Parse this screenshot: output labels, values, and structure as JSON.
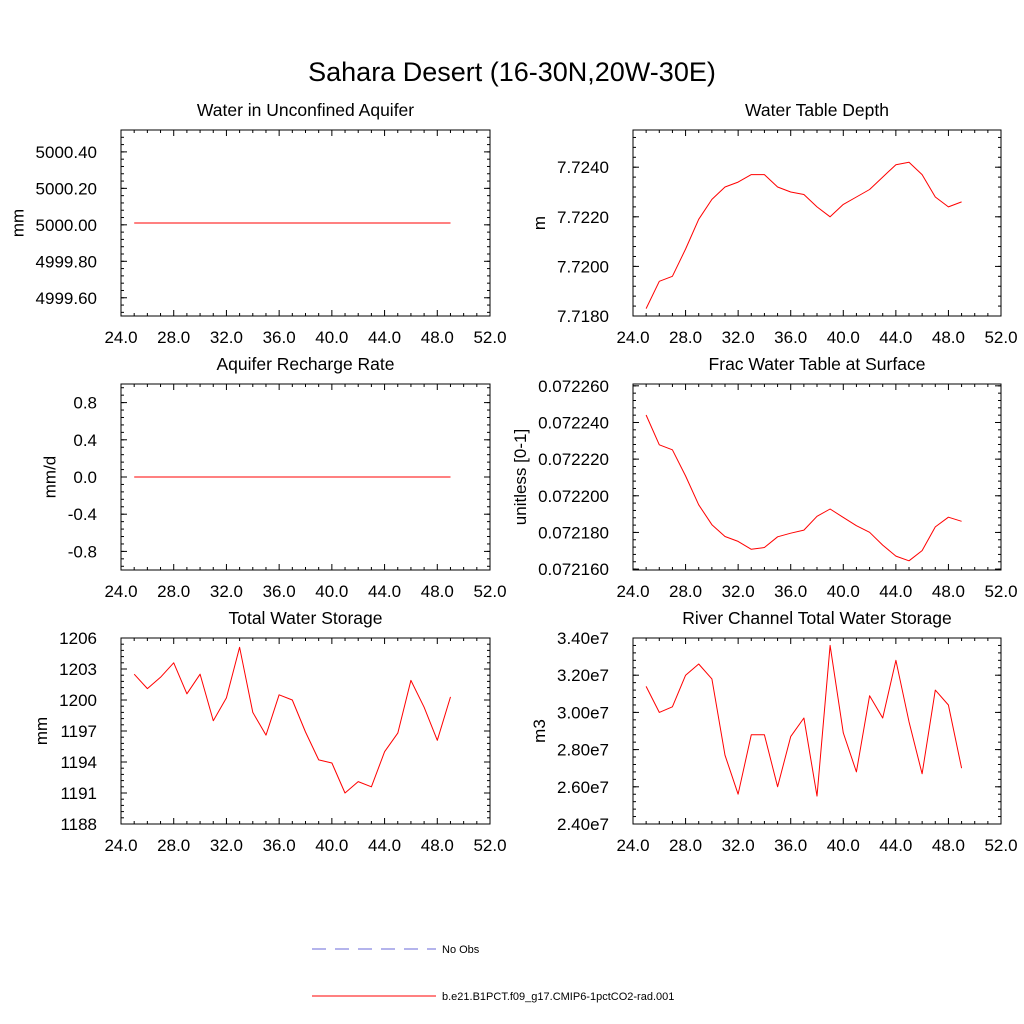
{
  "figure_title": "Sahara Desert (16-30N,20W-30E)",
  "legend": [
    {
      "label": "No Obs",
      "style": "dashed",
      "color": "#6a6ad8"
    },
    {
      "label": "b.e21.B1PCT.f09_g17.CMIP6-1pctCO2-rad.001",
      "style": "solid",
      "color": "#ff0000"
    }
  ],
  "chart_data": [
    {
      "type": "line",
      "title": "Water in Unconfined Aquifer",
      "ylabel": "mm",
      "xlim": [
        24,
        52
      ],
      "xticks": [
        "24.0",
        "28.0",
        "32.0",
        "36.0",
        "40.0",
        "44.0",
        "48.0",
        "52.0"
      ],
      "ylim": [
        4999.5,
        5000.52
      ],
      "yticks": [
        {
          "v": 4999.6,
          "label": "4999.60"
        },
        {
          "v": 4999.8,
          "label": "4999.80"
        },
        {
          "v": 5000.0,
          "label": "5000.00"
        },
        {
          "v": 5000.2,
          "label": "5000.20"
        },
        {
          "v": 5000.4,
          "label": "5000.40"
        }
      ],
      "x": [
        25,
        26,
        27,
        28,
        29,
        30,
        31,
        32,
        33,
        34,
        35,
        36,
        37,
        38,
        39,
        40,
        41,
        42,
        43,
        44,
        45,
        46,
        47,
        48,
        49
      ],
      "series": [
        {
          "name": "b.e21.B1PCT.f09_g17.CMIP6-1pctCO2-rad.001",
          "color": "#ff0000",
          "values": [
            5000.01,
            5000.01,
            5000.01,
            5000.01,
            5000.01,
            5000.01,
            5000.01,
            5000.01,
            5000.01,
            5000.01,
            5000.01,
            5000.01,
            5000.01,
            5000.01,
            5000.01,
            5000.01,
            5000.01,
            5000.01,
            5000.01,
            5000.01,
            5000.01,
            5000.01,
            5000.01,
            5000.01,
            5000.01
          ]
        }
      ]
    },
    {
      "type": "line",
      "title": "Water Table Depth",
      "ylabel": "m",
      "xlim": [
        24,
        52
      ],
      "xticks": [
        "24.0",
        "28.0",
        "32.0",
        "36.0",
        "40.0",
        "44.0",
        "48.0",
        "52.0"
      ],
      "ylim": [
        7.718,
        7.7255
      ],
      "yticks": [
        {
          "v": 7.718,
          "label": "7.7180"
        },
        {
          "v": 7.72,
          "label": "7.7200"
        },
        {
          "v": 7.722,
          "label": "7.7220"
        },
        {
          "v": 7.724,
          "label": "7.7240"
        }
      ],
      "x": [
        25,
        26,
        27,
        28,
        29,
        30,
        31,
        32,
        33,
        34,
        35,
        36,
        37,
        38,
        39,
        40,
        41,
        42,
        43,
        44,
        45,
        46,
        47,
        48,
        49
      ],
      "series": [
        {
          "name": "b.e21.B1PCT.f09_g17.CMIP6-1pctCO2-rad.001",
          "color": "#ff0000",
          "values": [
            7.7183,
            7.7194,
            7.7196,
            7.7207,
            7.7219,
            7.7227,
            7.7232,
            7.7234,
            7.7237,
            7.7237,
            7.7232,
            7.723,
            7.7229,
            7.7224,
            7.722,
            7.7225,
            7.7228,
            7.7231,
            7.7236,
            7.7241,
            7.7242,
            7.7237,
            7.7228,
            7.7224,
            7.7226
          ]
        }
      ]
    },
    {
      "type": "line",
      "title": "Aquifer Recharge Rate",
      "ylabel": "mm/d",
      "xlim": [
        24,
        52
      ],
      "xticks": [
        "24.0",
        "28.0",
        "32.0",
        "36.0",
        "40.0",
        "44.0",
        "48.0",
        "52.0"
      ],
      "ylim": [
        -1.0,
        1.0
      ],
      "yticks": [
        {
          "v": -0.8,
          "label": "-0.8"
        },
        {
          "v": -0.4,
          "label": "-0.4"
        },
        {
          "v": 0.0,
          "label": "0.0"
        },
        {
          "v": 0.4,
          "label": "0.4"
        },
        {
          "v": 0.8,
          "label": "0.8"
        }
      ],
      "x": [
        25,
        26,
        27,
        28,
        29,
        30,
        31,
        32,
        33,
        34,
        35,
        36,
        37,
        38,
        39,
        40,
        41,
        42,
        43,
        44,
        45,
        46,
        47,
        48,
        49
      ],
      "series": [
        {
          "name": "b.e21.B1PCT.f09_g17.CMIP6-1pctCO2-rad.001",
          "color": "#ff0000",
          "values": [
            0,
            0,
            0,
            0,
            0,
            0,
            0,
            0,
            0,
            0,
            0,
            0,
            0,
            0,
            0,
            0,
            0,
            0,
            0,
            0,
            0,
            0,
            0,
            0,
            0
          ]
        }
      ]
    },
    {
      "type": "line",
      "title": "Frac Water Table at Surface",
      "ylabel": "unitless [0-1]",
      "xlim": [
        24,
        52
      ],
      "xticks": [
        "24.0",
        "28.0",
        "32.0",
        "36.0",
        "40.0",
        "44.0",
        "48.0",
        "52.0"
      ],
      "ylim": [
        0.0721595,
        0.072261
      ],
      "yticks": [
        {
          "v": 0.07216,
          "label": "0.072160"
        },
        {
          "v": 0.07218,
          "label": "0.072180"
        },
        {
          "v": 0.0722,
          "label": "0.072200"
        },
        {
          "v": 0.07222,
          "label": "0.072220"
        },
        {
          "v": 0.07224,
          "label": "0.072240"
        },
        {
          "v": 0.07226,
          "label": "0.072260"
        }
      ],
      "x": [
        25,
        26,
        27,
        28,
        29,
        30,
        31,
        32,
        33,
        34,
        35,
        36,
        37,
        38,
        39,
        40,
        41,
        42,
        43,
        44,
        45,
        46,
        47,
        48,
        49
      ],
      "series": [
        {
          "name": "b.e21.B1PCT.f09_g17.CMIP6-1pctCO2-rad.001",
          "color": "#ff0000",
          "values": [
            0.0722441,
            0.0722278,
            0.0722251,
            0.0722108,
            0.0721951,
            0.0721842,
            0.0721778,
            0.0721751,
            0.0721708,
            0.0721718,
            0.0721776,
            0.0721796,
            0.0721813,
            0.0721888,
            0.0721928,
            0.0721882,
            0.0721837,
            0.0721801,
            0.0721731,
            0.0721671,
            0.0721645,
            0.0721701,
            0.072183,
            0.0721883,
            0.0721861
          ]
        }
      ]
    },
    {
      "type": "line",
      "title": "Total Water Storage",
      "ylabel": "mm",
      "xlim": [
        24,
        52
      ],
      "xticks": [
        "24.0",
        "28.0",
        "32.0",
        "36.0",
        "40.0",
        "44.0",
        "48.0",
        "52.0"
      ],
      "ylim": [
        1188,
        1206
      ],
      "yticks": [
        {
          "v": 1188,
          "label": "1188"
        },
        {
          "v": 1191,
          "label": "1191"
        },
        {
          "v": 1194,
          "label": "1194"
        },
        {
          "v": 1197,
          "label": "1197"
        },
        {
          "v": 1200,
          "label": "1200"
        },
        {
          "v": 1203,
          "label": "1203"
        },
        {
          "v": 1206,
          "label": "1206"
        }
      ],
      "x": [
        25,
        26,
        27,
        28,
        29,
        30,
        31,
        32,
        33,
        34,
        35,
        36,
        37,
        38,
        39,
        40,
        41,
        42,
        43,
        44,
        45,
        46,
        47,
        48,
        49
      ],
      "series": [
        {
          "name": "b.e21.B1PCT.f09_g17.CMIP6-1pctCO2-rad.001",
          "color": "#ff0000",
          "values": [
            1202.5,
            1201.1,
            1202.2,
            1203.6,
            1200.6,
            1202.5,
            1198,
            1200.2,
            1205.1,
            1198.8,
            1196.6,
            1200.5,
            1200,
            1196.9,
            1194.2,
            1193.9,
            1191,
            1192.1,
            1191.6,
            1195,
            1196.8,
            1201.9,
            1199.3,
            1196.1,
            1200.3
          ]
        }
      ]
    },
    {
      "type": "line",
      "title": "River Channel Total Water Storage",
      "ylabel": "m3",
      "xlim": [
        24,
        52
      ],
      "xticks": [
        "24.0",
        "28.0",
        "32.0",
        "36.0",
        "40.0",
        "44.0",
        "48.0",
        "52.0"
      ],
      "ylim": [
        24000000,
        34000000
      ],
      "yticks": [
        {
          "v": 24000000,
          "label": "2.40e7"
        },
        {
          "v": 26000000,
          "label": "2.60e7"
        },
        {
          "v": 28000000,
          "label": "2.80e7"
        },
        {
          "v": 30000000,
          "label": "3.00e7"
        },
        {
          "v": 32000000,
          "label": "3.20e7"
        },
        {
          "v": 34000000,
          "label": "3.40e7"
        }
      ],
      "x": [
        25,
        26,
        27,
        28,
        29,
        30,
        31,
        32,
        33,
        34,
        35,
        36,
        37,
        38,
        39,
        40,
        41,
        42,
        43,
        44,
        45,
        46,
        47,
        48,
        49
      ],
      "series": [
        {
          "name": "b.e21.B1PCT.f09_g17.CMIP6-1pctCO2-rad.001",
          "color": "#ff0000",
          "values": [
            31400000,
            30000000,
            30300000,
            32000000,
            32600000,
            31800000,
            27700000,
            25600000,
            28800000,
            28800000,
            26000000,
            28700000,
            29700000,
            25500000,
            33600000,
            28900000,
            26800000,
            30900000,
            29700000,
            32800000,
            29500000,
            26700000,
            31200000,
            30400000,
            27000000
          ]
        }
      ]
    }
  ]
}
